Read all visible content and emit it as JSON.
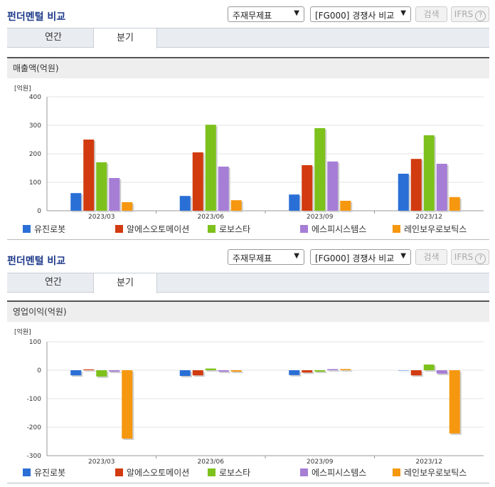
{
  "panels": [
    {
      "title": "펀더멘털 비교",
      "select1": "주재무제표",
      "select2": "[FG000] 경쟁사 비교",
      "search_label": "검색",
      "ifrs_label": "IFRS",
      "tabs": [
        "연간",
        "분기"
      ],
      "active_tab": "분기",
      "section_title": "매출액(억원)",
      "unit": "[억원]"
    },
    {
      "title": "펀더멘털 비교",
      "select1": "주재무제표",
      "select2": "[FG000] 경쟁사 비교",
      "search_label": "검색",
      "ifrs_label": "IFRS",
      "tabs": [
        "연간",
        "분기"
      ],
      "active_tab": "분기",
      "section_title": "영업이익(억원)",
      "unit": "[억원]"
    }
  ],
  "colors": {
    "유진로봇": "#2a6fd6",
    "알에스오토메이션": "#d13b0f",
    "로보스타": "#7dc11c",
    "에스피시스템스": "#a67ed6",
    "레인보우로보틱스": "#f5970f"
  },
  "chart_data": [
    {
      "type": "bar",
      "title": "매출액(억원)",
      "ylabel": "[억원]",
      "categories": [
        "2023/03",
        "2023/06",
        "2023/09",
        "2023/12"
      ],
      "ylim": [
        0,
        400
      ],
      "yticks": [
        0,
        100,
        200,
        300,
        400
      ],
      "grid": true,
      "legend": "bottom",
      "series": [
        {
          "name": "유진로봇",
          "values": [
            62,
            52,
            57,
            130
          ]
        },
        {
          "name": "알에스오토메이션",
          "values": [
            250,
            205,
            160,
            182
          ]
        },
        {
          "name": "로보스타",
          "values": [
            170,
            302,
            290,
            265
          ]
        },
        {
          "name": "에스피시스템스",
          "values": [
            115,
            155,
            173,
            165
          ]
        },
        {
          "name": "레인보우로보틱스",
          "values": [
            30,
            37,
            35,
            48
          ]
        }
      ]
    },
    {
      "type": "bar",
      "title": "영업이익(억원)",
      "ylabel": "[억원]",
      "categories": [
        "2023/03",
        "2023/06",
        "2023/09",
        "2023/12"
      ],
      "ylim": [
        -300,
        100
      ],
      "yticks": [
        -300,
        -200,
        -100,
        0,
        100
      ],
      "grid": true,
      "legend": "bottom",
      "series": [
        {
          "name": "유진로봇",
          "values": [
            -18,
            -20,
            -17,
            0
          ]
        },
        {
          "name": "알에스오토메이션",
          "values": [
            3,
            -18,
            -8,
            -18
          ]
        },
        {
          "name": "로보스타",
          "values": [
            -22,
            6,
            -5,
            20
          ]
        },
        {
          "name": "에스피시스템스",
          "values": [
            -5,
            -5,
            4,
            -12
          ]
        },
        {
          "name": "레인보우로보틱스",
          "values": [
            -240,
            -5,
            4,
            -222
          ]
        }
      ]
    }
  ]
}
